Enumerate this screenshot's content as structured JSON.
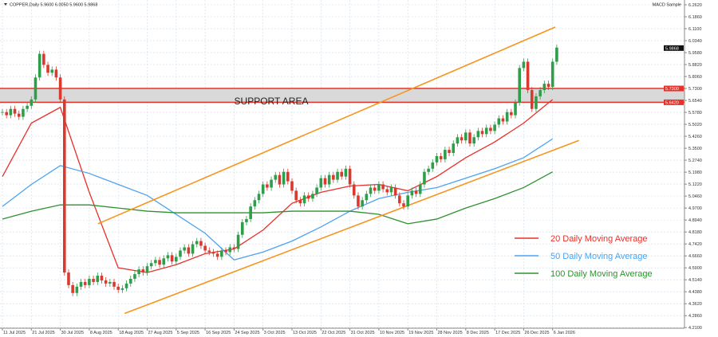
{
  "header": {
    "symbol_line": "COPPER,Daily  5.9600 6.0050 5.9600 5.9868",
    "indicator": "MACD Sample"
  },
  "chart_data": {
    "type": "candlestick",
    "title": "",
    "ylim": [
      4.21,
      6.262
    ],
    "grid": true,
    "y_ticks": [
      "6.2620",
      "6.1860",
      "6.1100",
      "6.0340",
      "5.9580",
      "5.8820",
      "5.8060",
      "5.7300",
      "5.6540",
      "5.5780",
      "5.5020",
      "5.4260",
      "5.3500",
      "5.2740",
      "5.1980",
      "5.1220",
      "5.0460",
      "4.9700",
      "4.8940",
      "4.8180",
      "4.7420",
      "4.6660",
      "4.5900",
      "4.5140",
      "4.4380",
      "4.3620",
      "4.2860",
      "4.2100"
    ],
    "x_ticks": [
      "11 Jul 2025",
      "21 Jul 2025",
      "30 Jul 2025",
      "8 Aug 2025",
      "18 Aug 2025",
      "27 Aug 2025",
      "5 Sep 2025",
      "16 Sep 2025",
      "24 Sep 2025",
      "3 Oct 2025",
      "13 Oct 2025",
      "22 Oct 2025",
      "31 Oct 2025",
      "10 Nov 2025",
      "19 Nov 2025",
      "28 Nov 2025",
      "8 Dec 2025",
      "17 Dec 2025",
      "26 Dec 2025",
      "6 Jan 2026"
    ],
    "candles_per_tick": 7,
    "closes": [
      5.58,
      5.56,
      5.6,
      5.57,
      5.55,
      5.6,
      5.62,
      5.66,
      5.8,
      5.95,
      5.88,
      5.83,
      5.85,
      5.8,
      5.66,
      4.56,
      4.48,
      4.43,
      4.47,
      4.5,
      4.48,
      4.52,
      4.5,
      4.54,
      4.51,
      4.49,
      4.5,
      4.47,
      4.45,
      4.46,
      4.49,
      4.52,
      4.55,
      4.58,
      4.56,
      4.6,
      4.62,
      4.64,
      4.61,
      4.65,
      4.67,
      4.63,
      4.66,
      4.7,
      4.72,
      4.68,
      4.74,
      4.76,
      4.73,
      4.7,
      4.69,
      4.68,
      4.66,
      4.7,
      4.69,
      4.72,
      4.71,
      4.8,
      4.88,
      4.9,
      4.98,
      5.02,
      5.06,
      5.12,
      5.1,
      5.15,
      5.18,
      5.12,
      5.2,
      5.14,
      5.08,
      5.02,
      5.0,
      5.05,
      5.03,
      5.06,
      5.1,
      5.16,
      5.12,
      5.18,
      5.15,
      5.2,
      5.17,
      5.22,
      5.12,
      5.05,
      4.98,
      5.02,
      5.06,
      5.1,
      5.08,
      5.12,
      5.09,
      5.07,
      5.1,
      5.05,
      5.0,
      4.98,
      5.05,
      5.08,
      5.06,
      5.12,
      5.2,
      5.22,
      5.26,
      5.3,
      5.28,
      5.34,
      5.32,
      5.38,
      5.42,
      5.4,
      5.45,
      5.38,
      5.42,
      5.46,
      5.44,
      5.48,
      5.46,
      5.5,
      5.54,
      5.52,
      5.58,
      5.56,
      5.64,
      5.86,
      5.9,
      5.72,
      5.6,
      5.68,
      5.72,
      5.76,
      5.74,
      5.9,
      5.99
    ],
    "current_price": "5.9868",
    "moving_averages": [
      {
        "name": "20 Daily Moving Average",
        "color": "#e8312a",
        "values_at_ticks": [
          5.17,
          5.51,
          5.61,
          5.07,
          4.59,
          4.56,
          4.61,
          4.68,
          4.71,
          4.83,
          5.0,
          5.07,
          5.11,
          5.12,
          5.08,
          5.17,
          5.29,
          5.39,
          5.51,
          5.66
        ]
      },
      {
        "name": "50 Daily Moving Average",
        "color": "#4da3f0",
        "values_at_ticks": [
          4.98,
          5.12,
          5.24,
          5.19,
          5.12,
          5.05,
          4.93,
          4.81,
          4.64,
          4.69,
          4.76,
          4.85,
          4.95,
          5.03,
          5.07,
          5.1,
          5.16,
          5.22,
          5.29,
          5.41
        ]
      },
      {
        "name": "100 Daily Moving Average",
        "color": "#2e9130",
        "values_at_ticks": [
          4.9,
          4.95,
          4.99,
          4.99,
          4.97,
          4.95,
          4.94,
          4.94,
          4.94,
          4.94,
          4.95,
          4.95,
          4.95,
          4.93,
          4.87,
          4.9,
          4.97,
          5.03,
          5.1,
          5.2
        ]
      }
    ],
    "channel": {
      "color": "#f7941d",
      "upper": [
        {
          "date": "11 Aug 2025",
          "price": 4.87
        },
        {
          "date": "7 Jan 2026",
          "price": 6.12
        }
      ],
      "lower": [
        {
          "date": "20 Aug 2025",
          "price": 4.3
        },
        {
          "date": "16 Jan 2026",
          "price": 5.4
        }
      ]
    },
    "support_area": {
      "label": "SUPPORT AREA",
      "top": 5.73,
      "bottom": 5.642,
      "top_label": "5.7300",
      "bottom_label": "5.6420",
      "color": "#e8312a"
    },
    "colors": {
      "bull": "#2f9e4a",
      "bear": "#d93a2f"
    }
  }
}
